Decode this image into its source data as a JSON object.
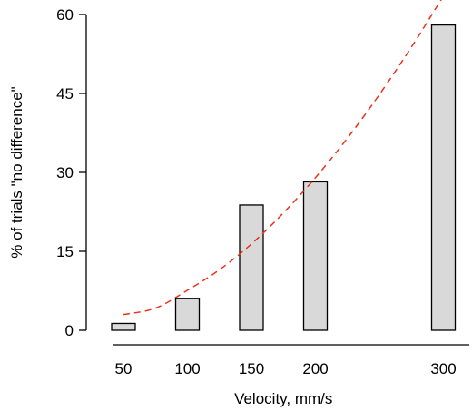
{
  "chart_data": {
    "type": "bar",
    "x": [
      50,
      100,
      150,
      200,
      300
    ],
    "x_tick_labels": [
      "50",
      "100",
      "150",
      "200",
      "300"
    ],
    "values": [
      1.3,
      6.0,
      23.8,
      28.2,
      58.0
    ],
    "xlabel": "Velocity, mm/s",
    "ylabel": "% of trials \"no difference\"",
    "ylim": [
      0,
      60
    ],
    "y_ticks": [
      0,
      15,
      30,
      45,
      60
    ],
    "y_tick_labels": [
      "0",
      "15",
      "30",
      "45",
      "60"
    ],
    "grid": false,
    "bar_color": "#d9d9d9",
    "fit_curve": {
      "style": "dashed",
      "color": "#e8331c",
      "points": [
        [
          50,
          3.0
        ],
        [
          75,
          4.2
        ],
        [
          100,
          7.6
        ],
        [
          125,
          11.5
        ],
        [
          150,
          16.4
        ],
        [
          175,
          22.3
        ],
        [
          200,
          29.0
        ],
        [
          225,
          36.5
        ],
        [
          250,
          44.8
        ],
        [
          275,
          53.8
        ],
        [
          300,
          63.5
        ]
      ]
    }
  }
}
